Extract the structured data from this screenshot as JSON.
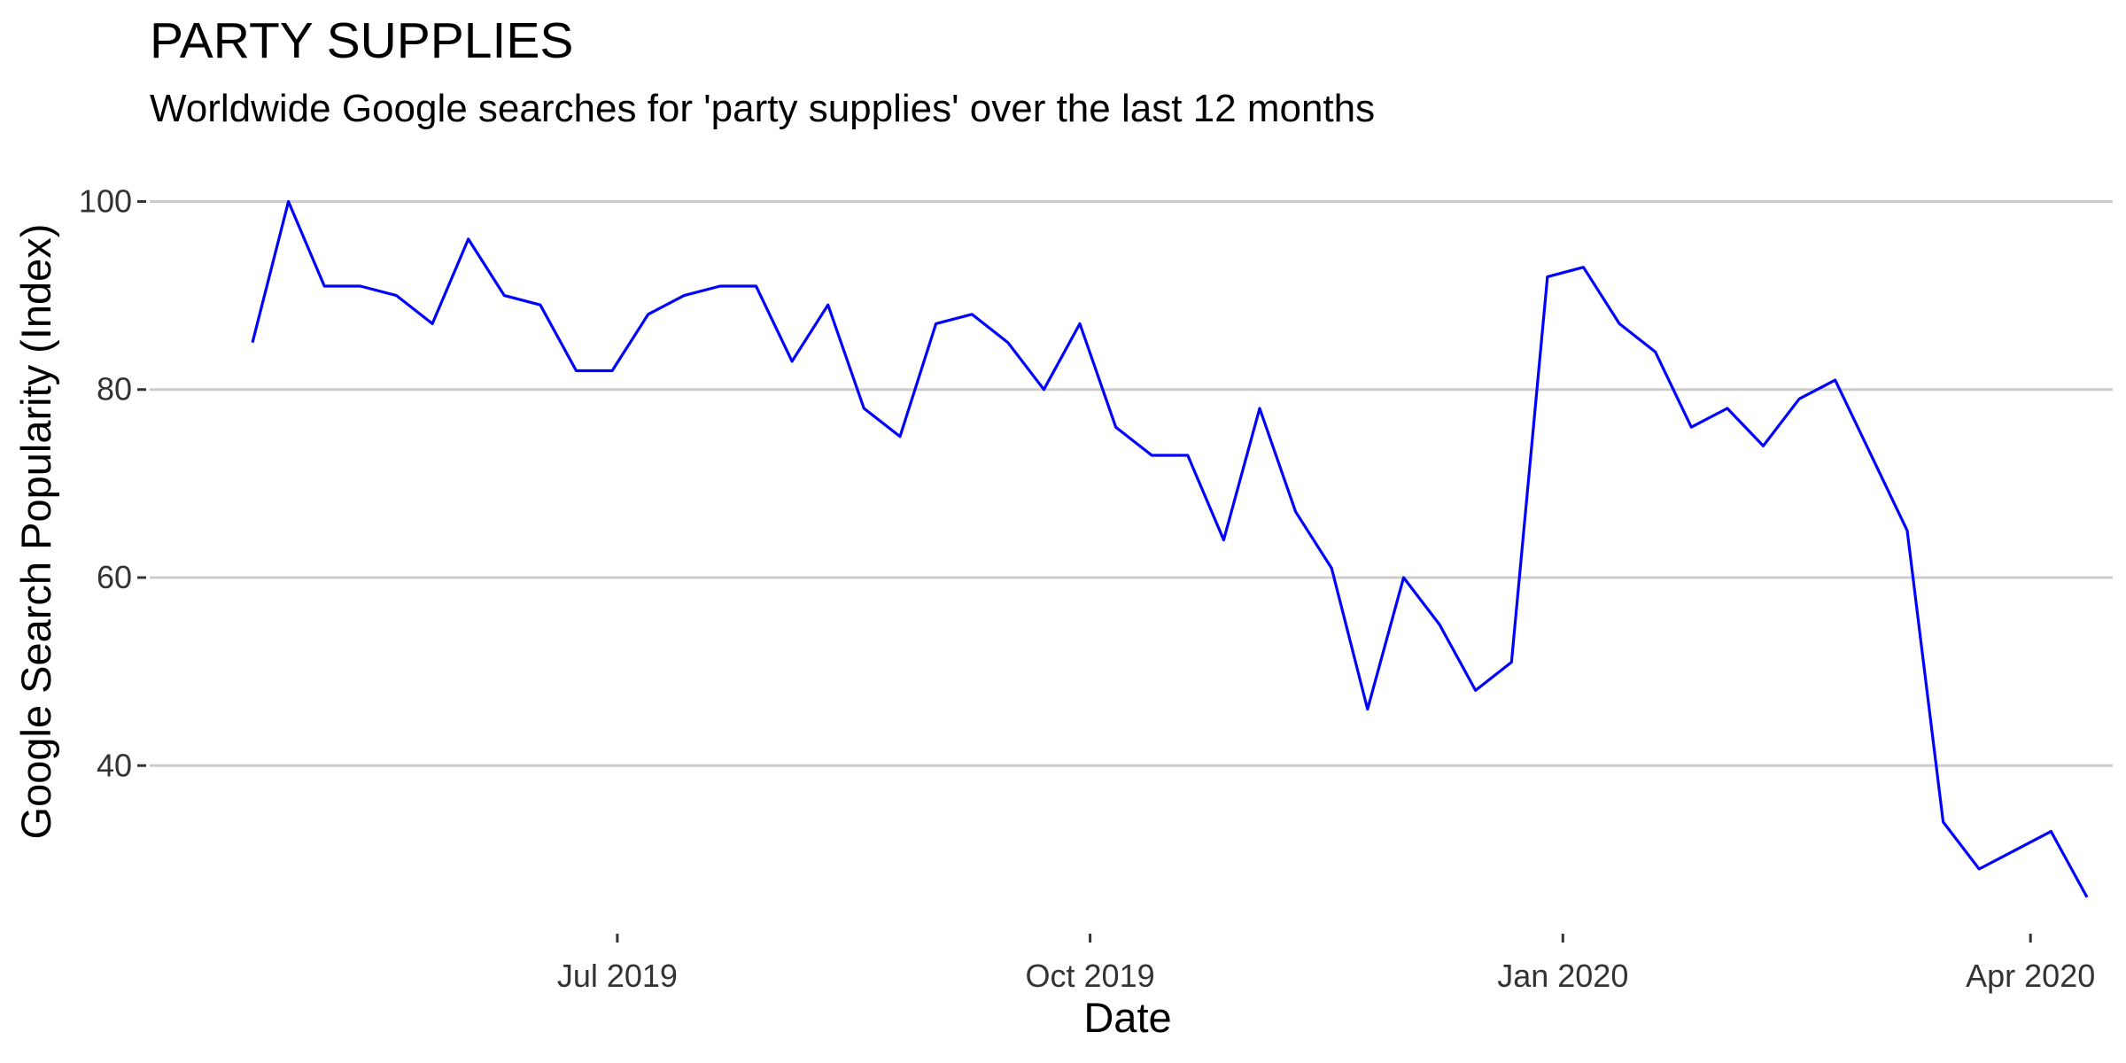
{
  "chart_data": {
    "type": "line",
    "title": "PARTY SUPPLIES",
    "subtitle": "Worldwide Google searches for 'party supplies' over the last 12 months",
    "xlabel": "Date",
    "ylabel": "Google Search Popularity (Index)",
    "grid": true,
    "series_color": "#0000ff",
    "ylim": [
      22.5,
      104
    ],
    "xlim": [
      "2019-04-01",
      "2020-04-17"
    ],
    "yticks": [
      {
        "value": 40,
        "label": "40"
      },
      {
        "value": 60,
        "label": "60"
      },
      {
        "value": 80,
        "label": "80"
      },
      {
        "value": 100,
        "label": "100"
      }
    ],
    "xticks": [
      {
        "date": "2019-07-01",
        "label": "Jul 2019"
      },
      {
        "date": "2019-10-01",
        "label": "Oct 2019"
      },
      {
        "date": "2020-01-01",
        "label": "Jan 2020"
      },
      {
        "date": "2020-04-01",
        "label": "Apr 2020"
      }
    ],
    "x": [
      "2019-04-21",
      "2019-04-28",
      "2019-05-05",
      "2019-05-12",
      "2019-05-19",
      "2019-05-26",
      "2019-06-02",
      "2019-06-09",
      "2019-06-16",
      "2019-06-23",
      "2019-06-30",
      "2019-07-07",
      "2019-07-14",
      "2019-07-21",
      "2019-07-28",
      "2019-08-04",
      "2019-08-11",
      "2019-08-18",
      "2019-08-25",
      "2019-09-01",
      "2019-09-08",
      "2019-09-15",
      "2019-09-22",
      "2019-09-29",
      "2019-10-06",
      "2019-10-13",
      "2019-10-20",
      "2019-10-27",
      "2019-11-03",
      "2019-11-10",
      "2019-11-17",
      "2019-11-24",
      "2019-12-01",
      "2019-12-08",
      "2019-12-15",
      "2019-12-22",
      "2019-12-29",
      "2020-01-05",
      "2020-01-12",
      "2020-01-19",
      "2020-01-26",
      "2020-02-02",
      "2020-02-09",
      "2020-02-16",
      "2020-02-23",
      "2020-03-01",
      "2020-03-08",
      "2020-03-15",
      "2020-03-22",
      "2020-03-29",
      "2020-04-05",
      "2020-04-12"
    ],
    "series": [
      {
        "values": [
          85,
          100,
          91,
          91,
          90,
          87,
          96,
          90,
          89,
          82,
          82,
          88,
          90,
          91,
          91,
          83,
          89,
          78,
          75,
          87,
          88,
          85,
          80,
          87,
          76,
          73,
          73,
          64,
          78,
          67,
          61,
          46,
          60,
          55,
          48,
          51,
          92,
          93,
          87,
          84,
          76,
          78,
          74,
          79,
          81,
          73,
          65,
          34,
          29,
          31,
          33,
          26
        ]
      }
    ]
  }
}
